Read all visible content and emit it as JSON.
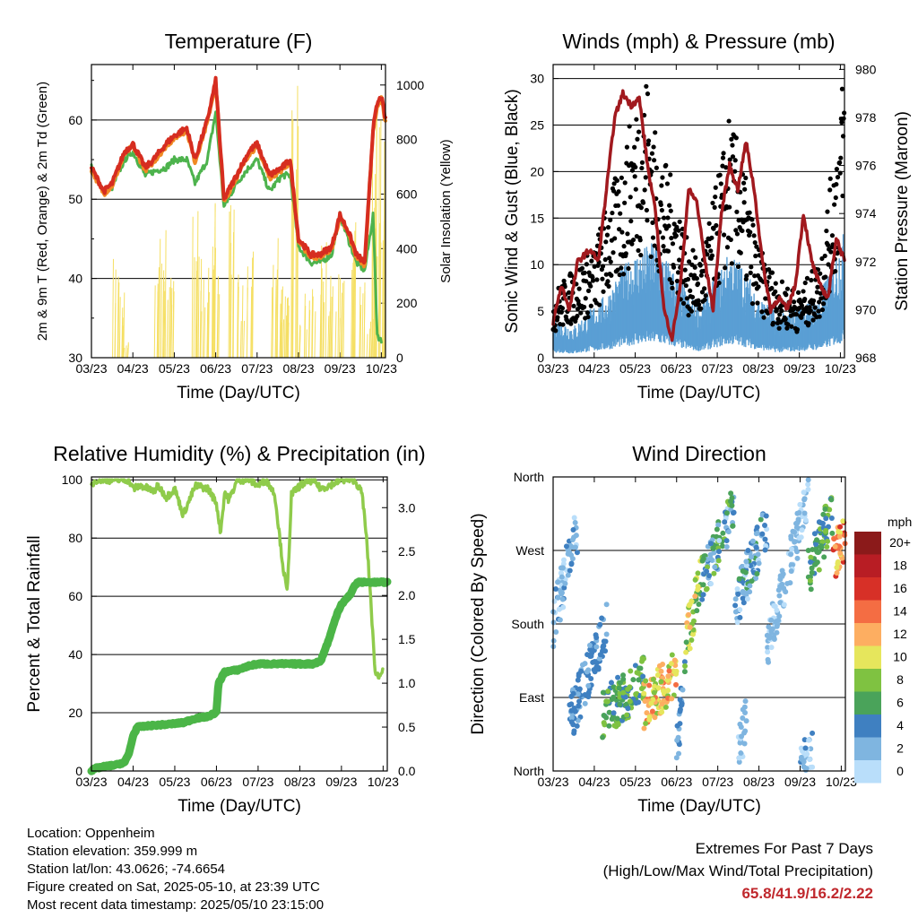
{
  "colors": {
    "t2m": "#d62d20",
    "t9m": "#f08a24",
    "td": "#4db34d",
    "solar": "#f5df63",
    "wind": "#5a9fd4",
    "gust": "#000000",
    "pressure": "#a1191e",
    "rh": "#8fcb4b",
    "precip": "#4bb547",
    "extremes": "#c0282d"
  },
  "x_ticks": [
    "03/23",
    "04/23",
    "05/23",
    "06/23",
    "07/23",
    "08/23",
    "09/23",
    "10/23"
  ],
  "x_label": "Time (Day/UTC)",
  "charts": {
    "temperature": {
      "type": "line",
      "title": "Temperature (F)",
      "xlabel": "Time (Day/UTC)",
      "ylabel": "2m & 9m T (Red, Orange) & 2m Td (Green)",
      "y2label": "Solar Insolation (Yellow)",
      "ylim": [
        30,
        67
      ],
      "yticks": [
        "30",
        "40",
        "50",
        "60"
      ],
      "y2lim": [
        0,
        1075
      ],
      "y2ticks": [
        "0",
        "200",
        "400",
        "600",
        "800",
        "1000"
      ],
      "xlim": [
        0,
        7.1
      ],
      "series": [
        {
          "key": "t2m",
          "x": [
            0,
            0.3,
            0.5,
            0.8,
            1.0,
            1.3,
            1.5,
            1.8,
            2.0,
            2.3,
            2.5,
            2.8,
            3.0,
            3.2,
            3.5,
            3.8,
            4.0,
            4.3,
            4.6,
            4.8,
            5.0,
            5.3,
            5.5,
            5.8,
            6.0,
            6.2,
            6.4,
            6.6,
            6.8,
            6.9,
            7.0,
            7.1
          ],
          "y": [
            54,
            51,
            52,
            56,
            57,
            54,
            55,
            57,
            58,
            59,
            55,
            60,
            65,
            50,
            53,
            56,
            57,
            53,
            54,
            55,
            45,
            43,
            43,
            44,
            48,
            46,
            43,
            42,
            59,
            62,
            63,
            60
          ]
        },
        {
          "key": "td",
          "x": [
            0,
            0.3,
            0.5,
            0.8,
            1.0,
            1.3,
            1.5,
            1.8,
            2.0,
            2.3,
            2.5,
            2.8,
            3.0,
            3.2,
            3.5,
            3.8,
            4.0,
            4.3,
            4.6,
            4.8,
            5.0,
            5.3,
            5.5,
            5.8,
            6.0,
            6.2,
            6.4,
            6.6,
            6.8,
            6.9,
            7.0
          ],
          "y": [
            54,
            51,
            51.5,
            55,
            56,
            53,
            53.5,
            54,
            55,
            55,
            52,
            55,
            61,
            49,
            52,
            54,
            55,
            51,
            53,
            53,
            44,
            42,
            42,
            43,
            48,
            45,
            42,
            41,
            48,
            33,
            32
          ]
        }
      ],
      "solar": {
        "x": [
          0.6,
          0.7,
          0.8,
          1.6,
          1.75,
          1.9,
          2.5,
          2.7,
          2.9,
          3.0,
          3.4,
          3.6,
          3.8,
          4.4,
          4.55,
          4.7,
          4.9,
          5.1,
          5.3,
          5.6,
          5.8,
          6.0,
          6.3,
          6.5,
          6.7,
          6.8,
          6.9,
          7.0
        ],
        "y": [
          380,
          270,
          60,
          470,
          490,
          360,
          580,
          380,
          600,
          430,
          570,
          320,
          400,
          440,
          270,
          310,
          1050,
          250,
          260,
          430,
          380,
          320,
          500,
          280,
          160,
          1020,
          900,
          1050
        ]
      }
    },
    "winds": {
      "type": "line",
      "title": "Winds (mph) & Pressure (mb)",
      "xlabel": "Time (Day/UTC)",
      "ylabel": "Sonic Wind & Gust (Blue, Black)",
      "y2label": "Station Pressure (Maroon)",
      "ylim": [
        0,
        31.5
      ],
      "yticks": [
        "0",
        "5",
        "10",
        "15",
        "20",
        "25",
        "30"
      ],
      "y2lim": [
        968,
        980.2
      ],
      "y2ticks": [
        "968",
        "970",
        "972",
        "974",
        "976",
        "978",
        "980"
      ],
      "xlim": [
        0,
        7.1
      ],
      "series": [
        {
          "key": "pressure",
          "x": [
            0,
            0.2,
            0.4,
            0.6,
            0.9,
            1.1,
            1.3,
            1.5,
            1.7,
            1.9,
            2.1,
            2.3,
            2.5,
            2.7,
            2.9,
            3.1,
            3.3,
            3.5,
            3.7,
            3.9,
            4.1,
            4.3,
            4.5,
            4.7,
            4.9,
            5.1,
            5.3,
            5.5,
            5.7,
            5.9,
            6.1,
            6.3,
            6.5,
            6.7,
            6.9,
            7.1
          ],
          "y": [
            969.5,
            971,
            970,
            972,
            972.5,
            972,
            975,
            978,
            979,
            978.5,
            978.8,
            976,
            974,
            970,
            968.8,
            971,
            975,
            974.5,
            972,
            970,
            974,
            976,
            975,
            977,
            975,
            972,
            970,
            970.5,
            970,
            971,
            974,
            972,
            971,
            970.5,
            973,
            972
          ]
        }
      ],
      "wind_envelope": {
        "x": [
          0,
          0.5,
          1.0,
          1.3,
          1.6,
          2.0,
          2.5,
          3.0,
          3.3,
          3.6,
          4.0,
          4.3,
          4.6,
          5.0,
          5.5,
          6.0,
          6.5,
          6.9,
          7.1
        ],
        "y": [
          4,
          3,
          5,
          6,
          8,
          10,
          11,
          8,
          6,
          5,
          8,
          10,
          9,
          6,
          4,
          5,
          6,
          10,
          12
        ]
      },
      "gust_envelope": {
        "x": [
          0,
          0.5,
          1.0,
          1.3,
          1.6,
          2.0,
          2.3,
          2.5,
          3.0,
          3.3,
          3.6,
          4.0,
          4.3,
          4.6,
          5.0,
          5.5,
          6.0,
          6.5,
          6.9,
          7.1
        ],
        "y": [
          6,
          8,
          10,
          14,
          17,
          23,
          26,
          20,
          15,
          10,
          9,
          16,
          22,
          18,
          10,
          7,
          6,
          9,
          20,
          27
        ]
      }
    },
    "humidity": {
      "type": "line",
      "title": "Relative Humidity (%) & Precipitation (in)",
      "xlabel": "Time (Day/UTC)",
      "ylabel": "Percent & Total Rainfall",
      "ylim": [
        0,
        101
      ],
      "yticks": [
        "0",
        "20",
        "40",
        "60",
        "80",
        "100"
      ],
      "y2lim": [
        0,
        3.35
      ],
      "y2ticks": [
        "0.0",
        "0.5",
        "1.0",
        "1.5",
        "2.0",
        "2.5",
        "3.0"
      ],
      "xlim": [
        0,
        7.1
      ],
      "series": [
        {
          "key": "rh",
          "x": [
            0,
            0.1,
            0.9,
            1.0,
            1.2,
            1.5,
            1.6,
            1.8,
            2.0,
            2.2,
            2.5,
            2.8,
            3.0,
            3.1,
            3.2,
            3.3,
            3.5,
            3.8,
            4.0,
            4.2,
            4.4,
            4.6,
            4.7,
            4.8,
            5.0,
            5.3,
            5.5,
            5.7,
            6.0,
            6.2,
            6.3,
            6.4,
            6.5,
            6.6,
            6.7,
            6.8,
            6.9,
            7.0
          ],
          "y": [
            98,
            100,
            100,
            97,
            98,
            96,
            98,
            94,
            97,
            88,
            98,
            97,
            92,
            82,
            96,
            93,
            100,
            100,
            98,
            100,
            95,
            70,
            61,
            95,
            98,
            100,
            97,
            98,
            100,
            100,
            100,
            98,
            95,
            80,
            60,
            35,
            32,
            36
          ]
        },
        {
          "key": "precip",
          "x": [
            0,
            0.1,
            0.3,
            0.6,
            0.8,
            0.9,
            1.0,
            1.1,
            1.5,
            1.8,
            2.2,
            2.5,
            2.8,
            3.0,
            3.05,
            3.2,
            3.5,
            3.8,
            4.0,
            4.3,
            4.6,
            5.0,
            5.3,
            5.5,
            5.7,
            5.9,
            6.0,
            6.2,
            6.3,
            6.4,
            6.6,
            6.8,
            7.1
          ],
          "y": [
            0,
            0.03,
            0.05,
            0.07,
            0.1,
            0.2,
            0.4,
            0.5,
            0.52,
            0.53,
            0.55,
            0.6,
            0.62,
            0.67,
            1.0,
            1.13,
            1.15,
            1.2,
            1.22,
            1.22,
            1.22,
            1.22,
            1.22,
            1.25,
            1.5,
            1.8,
            1.9,
            2.0,
            2.1,
            2.15,
            2.15,
            2.15,
            2.15
          ]
        }
      ]
    },
    "direction": {
      "type": "scatter",
      "title": "Wind Direction",
      "xlabel": "Time (Day/UTC)",
      "ylabel": "Direction (Colored By Speed)",
      "ylim": [
        0,
        360
      ],
      "yticks": [
        "North",
        "East",
        "South",
        "West",
        "North"
      ],
      "xlim": [
        0,
        7.1
      ],
      "legend_title": "mph",
      "legend_labels": [
        "20+",
        "18",
        "16",
        "14",
        "12",
        "10",
        "8",
        "6",
        "4",
        "2",
        "0"
      ],
      "legend_colors": [
        "#8b1a1a",
        "#b81d24",
        "#d73027",
        "#f46d43",
        "#fdae61",
        "#e6e65c",
        "#7fc241",
        "#4aa35a",
        "#3f80c1",
        "#7fb5e0",
        "#b9defa"
      ],
      "clusters": [
        {
          "x": [
            0,
            0.6
          ],
          "y": [
            180,
            300
          ],
          "s": [
            0,
            4
          ]
        },
        {
          "x": [
            0.4,
            1.3
          ],
          "y": [
            60,
            180
          ],
          "s": [
            2,
            5
          ]
        },
        {
          "x": [
            1.2,
            2.2
          ],
          "y": [
            70,
            110
          ],
          "s": [
            3,
            9
          ]
        },
        {
          "x": [
            2.2,
            3.0
          ],
          "y": [
            80,
            120
          ],
          "s": [
            8,
            14
          ]
        },
        {
          "x": [
            3.0,
            3.2
          ],
          "y": [
            20,
            120
          ],
          "s": [
            1,
            5
          ]
        },
        {
          "x": [
            3.2,
            3.6
          ],
          "y": [
            150,
            240
          ],
          "s": [
            5,
            12
          ]
        },
        {
          "x": [
            3.6,
            4.4
          ],
          "y": [
            230,
            320
          ],
          "s": [
            0,
            8
          ]
        },
        {
          "x": [
            4.4,
            5.2
          ],
          "y": [
            200,
            300
          ],
          "s": [
            0,
            6
          ]
        },
        {
          "x": [
            5.2,
            6.2
          ],
          "y": [
            150,
            340
          ],
          "s": [
            0,
            3
          ]
        },
        {
          "x": [
            6.2,
            6.8
          ],
          "y": [
            240,
            320
          ],
          "s": [
            4,
            8
          ]
        },
        {
          "x": [
            6.8,
            7.1
          ],
          "y": [
            260,
            290
          ],
          "s": [
            10,
            16
          ]
        },
        {
          "x": [
            4.5,
            4.7
          ],
          "y": [
            20,
            70
          ],
          "s": [
            0,
            3
          ]
        },
        {
          "x": [
            6.0,
            6.3
          ],
          "y": [
            0,
            30
          ],
          "s": [
            0,
            4
          ]
        }
      ]
    }
  },
  "info": {
    "location": "Location: Oppenheim",
    "elevation": "Station elevation: 359.999 m",
    "latlon": "Station lat/lon: 43.0626; -74.6654",
    "created": "Figure created on Sat, 2025-05-10, at 23:39 UTC",
    "recent": "Most recent data timestamp: 2025/05/10 23:15:00"
  },
  "extremes": {
    "title": "Extremes For Past 7 Days",
    "subtitle": "(High/Low/Max Wind/Total Precipitation)",
    "values": "65.8/41.9/16.2/2.22"
  }
}
